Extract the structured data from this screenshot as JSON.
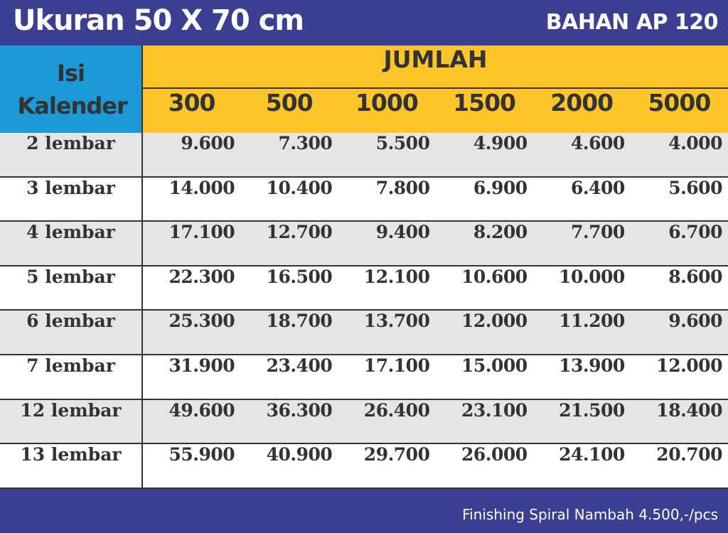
{
  "header": {
    "title": "Ukuran 50 X 70 cm",
    "material": "BAHAN AP 120"
  },
  "table": {
    "corner": "Isi Kalender",
    "group_header": "JUMLAH",
    "columns": [
      "300",
      "500",
      "1000",
      "1500",
      "2000",
      "5000"
    ],
    "rows": [
      {
        "label": "2 lembar",
        "values": [
          "9.600",
          "7.300",
          "5.500",
          "4.900",
          "4.600",
          "4.000"
        ]
      },
      {
        "label": "3 lembar",
        "values": [
          "14.000",
          "10.400",
          "7.800",
          "6.900",
          "6.400",
          "5.600"
        ]
      },
      {
        "label": "4 lembar",
        "values": [
          "17.100",
          "12.700",
          "9.400",
          "8.200",
          "7.700",
          "6.700"
        ]
      },
      {
        "label": "5 lembar",
        "values": [
          "22.300",
          "16.500",
          "12.100",
          "10.600",
          "10.000",
          "8.600"
        ]
      },
      {
        "label": "6 lembar",
        "values": [
          "25.300",
          "18.700",
          "13.700",
          "12.000",
          "11.200",
          "9.600"
        ]
      },
      {
        "label": "7 lembar",
        "values": [
          "31.900",
          "23.400",
          "17.100",
          "15.000",
          "13.900",
          "12.000"
        ]
      },
      {
        "label": "12 lembar",
        "values": [
          "49.600",
          "36.300",
          "26.400",
          "23.100",
          "21.500",
          "18.400"
        ]
      },
      {
        "label": "13 lembar",
        "values": [
          "55.900",
          "40.900",
          "29.700",
          "26.000",
          "24.100",
          "20.700"
        ]
      }
    ]
  },
  "footer": {
    "note": "Finishing Spiral Nambah 4.500,-/pcs"
  }
}
